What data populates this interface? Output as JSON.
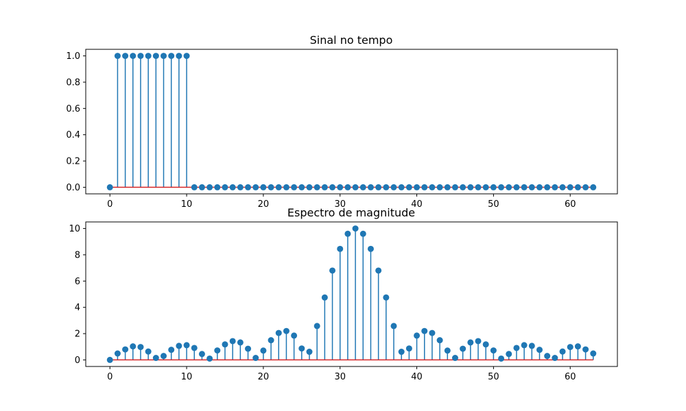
{
  "chart_data": [
    {
      "type": "stem",
      "title": "Sinal no tempo",
      "xlabel": "",
      "ylabel": "",
      "xlim": [
        -3.15,
        66.15
      ],
      "ylim": [
        -0.05,
        1.05
      ],
      "xticks": [
        0,
        10,
        20,
        30,
        40,
        50,
        60
      ],
      "xtick_labels": [
        "0",
        "10",
        "20",
        "30",
        "40",
        "50",
        "60"
      ],
      "yticks": [
        0.0,
        0.2,
        0.4,
        0.6,
        0.8,
        1.0
      ],
      "ytick_labels": [
        "0.0",
        "0.2",
        "0.4",
        "0.6",
        "0.8",
        "1.0"
      ],
      "grid": false,
      "x_start": 0,
      "values": [
        0,
        1,
        1,
        1,
        1,
        1,
        1,
        1,
        1,
        1,
        1,
        0,
        0,
        0,
        0,
        0,
        0,
        0,
        0,
        0,
        0,
        0,
        0,
        0,
        0,
        0,
        0,
        0,
        0,
        0,
        0,
        0,
        0,
        0,
        0,
        0,
        0,
        0,
        0,
        0,
        0,
        0,
        0,
        0,
        0,
        0,
        0,
        0,
        0,
        0,
        0,
        0,
        0,
        0,
        0,
        0,
        0,
        0,
        0,
        0,
        0,
        0,
        0,
        0
      ],
      "colors": {
        "stem": "#1f77b4",
        "marker": "#1f77b4",
        "baseline": "#d62728"
      }
    },
    {
      "type": "stem",
      "title": "Espectro de magnitude",
      "xlabel": "",
      "ylabel": "",
      "xlim": [
        -3.15,
        66.15
      ],
      "ylim": [
        -0.5,
        10.5
      ],
      "xticks": [
        0,
        10,
        20,
        30,
        40,
        50,
        60
      ],
      "xtick_labels": [
        "0",
        "10",
        "20",
        "30",
        "40",
        "50",
        "60"
      ],
      "yticks": [
        0,
        2,
        4,
        6,
        8,
        10
      ],
      "ytick_labels": [
        "0",
        "2",
        "4",
        "6",
        "8",
        "10"
      ],
      "grid": false,
      "x_start": 0,
      "values": [
        0,
        0.49,
        0.8,
        1.03,
        0.98,
        0.64,
        0.15,
        0.3,
        0.77,
        1.07,
        1.12,
        0.91,
        0.45,
        0.1,
        0.72,
        1.18,
        1.43,
        1.33,
        0.85,
        0.15,
        0.71,
        1.5,
        2.05,
        2.2,
        1.85,
        0.87,
        0.62,
        2.58,
        4.75,
        6.8,
        8.45,
        9.6,
        10.0,
        9.6,
        8.45,
        6.8,
        4.75,
        2.58,
        0.62,
        0.87,
        1.85,
        2.2,
        2.05,
        1.5,
        0.71,
        0.15,
        0.85,
        1.33,
        1.43,
        1.18,
        0.72,
        0.1,
        0.45,
        0.91,
        1.12,
        1.07,
        0.77,
        0.3,
        0.15,
        0.64,
        0.98,
        1.03,
        0.8,
        0.49
      ],
      "colors": {
        "stem": "#1f77b4",
        "marker": "#1f77b4",
        "baseline": "#d62728"
      }
    }
  ]
}
